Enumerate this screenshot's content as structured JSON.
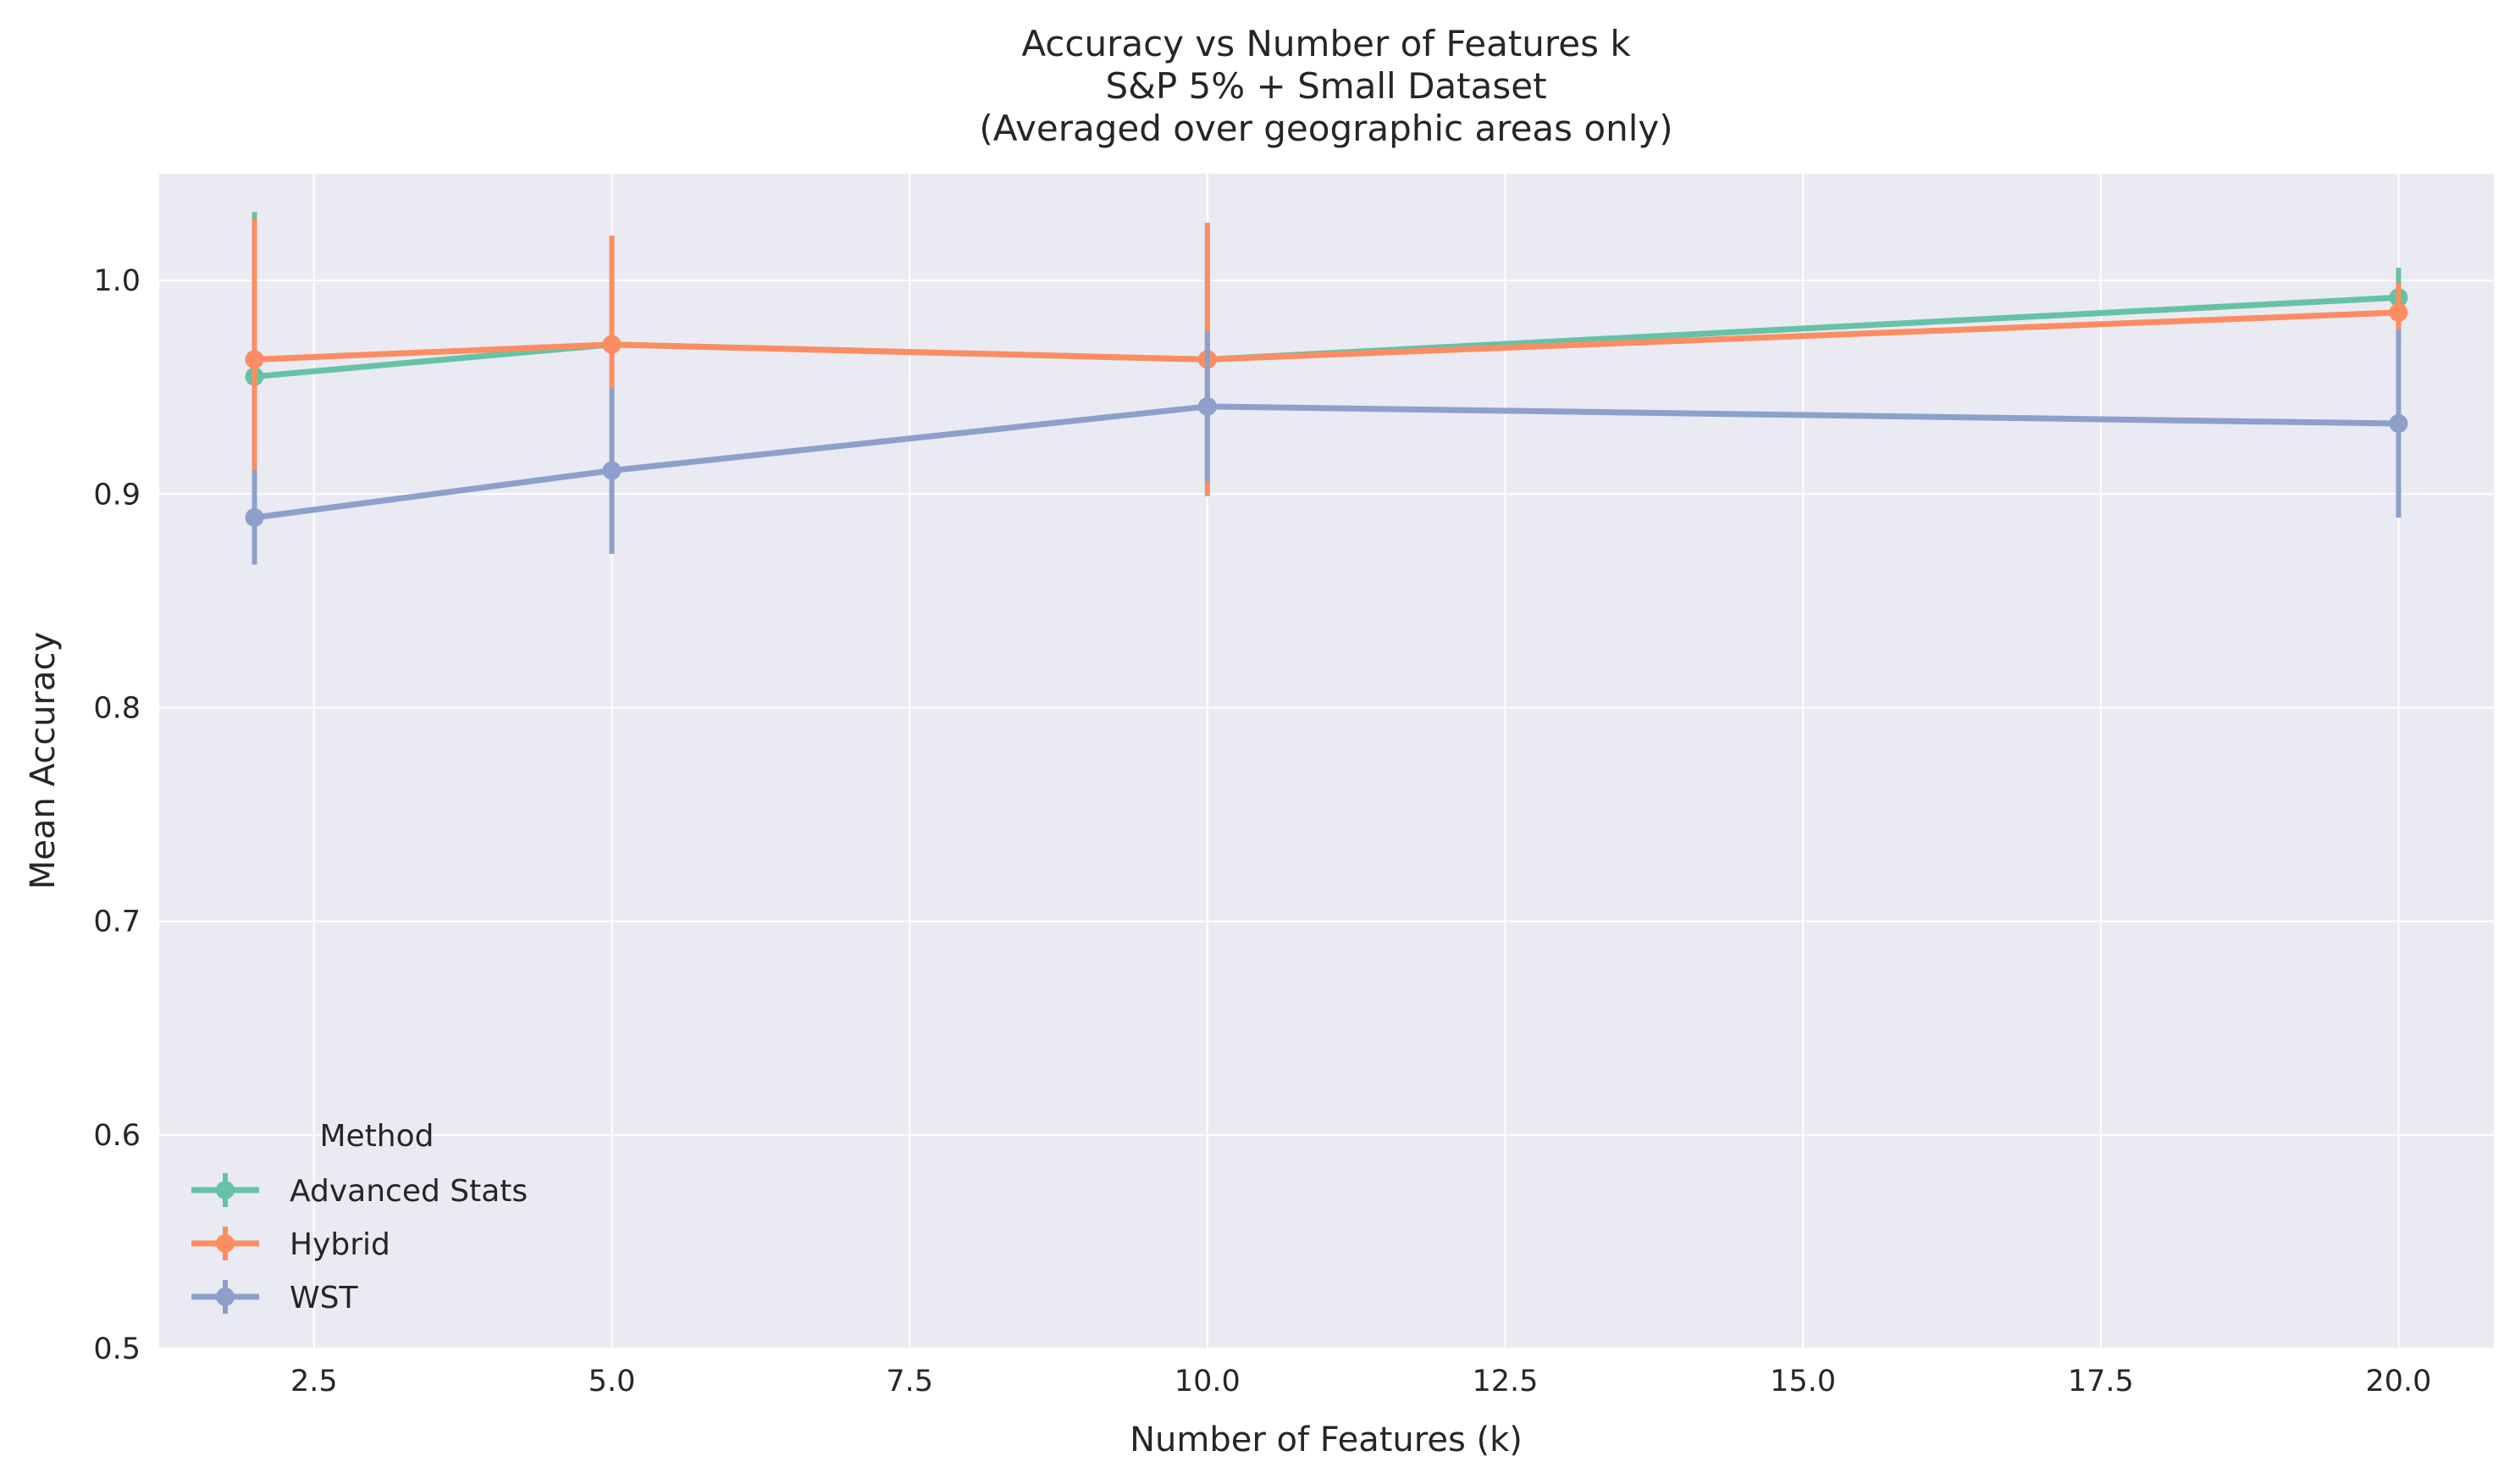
{
  "chart_data": {
    "type": "line",
    "title_lines": [
      "Accuracy vs Number of Features k",
      "S&P 5% + Small Dataset",
      "(Averaged over geographic areas only)"
    ],
    "xlabel": "Number of Features (k)",
    "ylabel": "Mean Accuracy",
    "xlim": [
      1.2,
      20.8
    ],
    "ylim": [
      0.5,
      1.05
    ],
    "xticks": [
      2.5,
      5.0,
      7.5,
      10.0,
      12.5,
      15.0,
      17.5,
      20.0
    ],
    "xtick_labels": [
      "2.5",
      "5.0",
      "7.5",
      "10.0",
      "12.5",
      "15.0",
      "17.5",
      "20.0"
    ],
    "yticks": [
      0.5,
      0.6,
      0.7,
      0.8,
      0.9,
      1.0
    ],
    "ytick_labels": [
      "0.5",
      "0.6",
      "0.7",
      "0.8",
      "0.9",
      "1.0"
    ],
    "grid": true,
    "legend_title": "Method",
    "legend_position": "lower-left",
    "x": [
      2,
      5,
      10,
      20
    ],
    "series": [
      {
        "name": "Advanced Stats",
        "color": "#66c2a5",
        "values": [
          0.955,
          0.97,
          0.963,
          0.992
        ],
        "err_low": [
          0.91,
          0.948,
          0.905,
          0.978
        ],
        "err_high": [
          1.032,
          0.993,
          1.021,
          1.006
        ]
      },
      {
        "name": "Hybrid",
        "color": "#fc8d62",
        "values": [
          0.963,
          0.97,
          0.963,
          0.985
        ],
        "err_low": [
          0.91,
          0.948,
          0.899,
          0.971
        ],
        "err_high": [
          1.029,
          1.021,
          1.027,
          0.999
        ]
      },
      {
        "name": "WST",
        "color": "#8da0cb",
        "values": [
          0.889,
          0.911,
          0.941,
          0.933
        ],
        "err_low": [
          0.867,
          0.872,
          0.906,
          0.889
        ],
        "err_high": [
          0.911,
          0.95,
          0.976,
          0.977
        ]
      }
    ]
  }
}
